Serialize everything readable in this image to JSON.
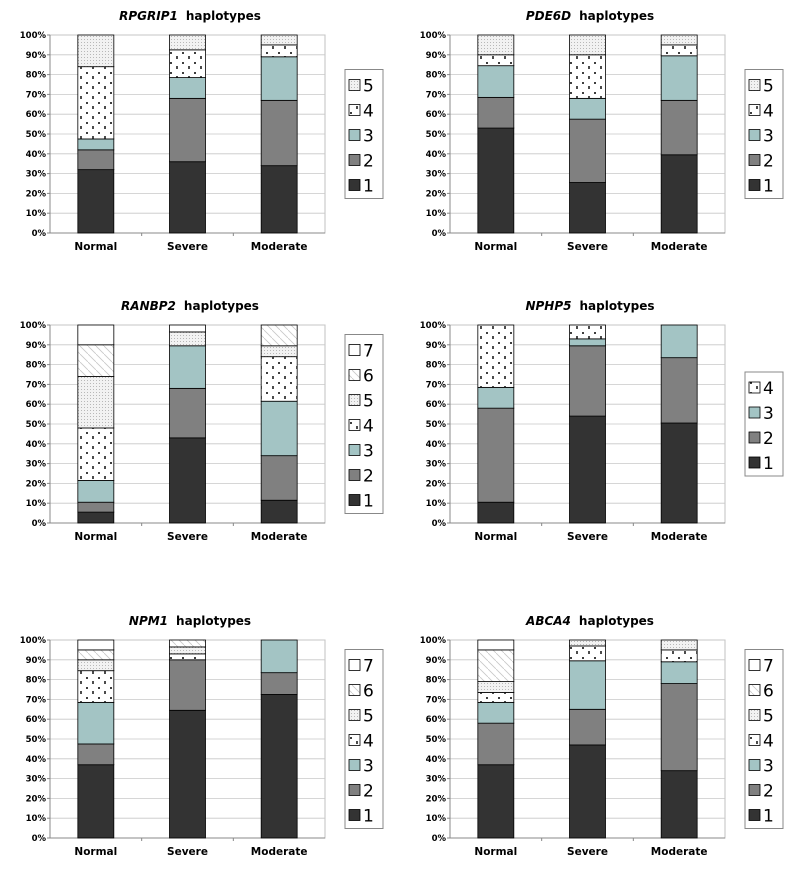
{
  "colors": {
    "h1": "#333333",
    "h2": "#808080",
    "h3": "#a3c4c4",
    "h4": "#ffffff",
    "h5": "#f0f0f0",
    "h6": "#ffffff",
    "h7": "#ffffff"
  },
  "chart_data": [
    {
      "type": "bar",
      "stacked": true,
      "title_gene": "RPGRIP1",
      "title_suffix": "haplotypes",
      "ylim": [
        0,
        100
      ],
      "yticks": [
        "0%",
        "10%",
        "20%",
        "30%",
        "40%",
        "50%",
        "60%",
        "70%",
        "80%",
        "90%",
        "100%"
      ],
      "categories": [
        "Normal",
        "Severe",
        "Moderate"
      ],
      "series": [
        {
          "name": "1",
          "values": [
            32,
            36,
            34
          ]
        },
        {
          "name": "2",
          "values": [
            10,
            32,
            33
          ]
        },
        {
          "name": "3",
          "values": [
            5.5,
            10.5,
            22
          ]
        },
        {
          "name": "4",
          "values": [
            36.5,
            14,
            6
          ]
        },
        {
          "name": "5",
          "values": [
            16,
            7.5,
            5
          ]
        }
      ],
      "legend_order": [
        "5",
        "4",
        "3",
        "2",
        "1"
      ],
      "legend": "right"
    },
    {
      "type": "bar",
      "stacked": true,
      "title_gene": "PDE6D",
      "title_suffix": "haplotypes",
      "ylim": [
        0,
        100
      ],
      "yticks": [
        "0%",
        "10%",
        "20%",
        "30%",
        "40%",
        "50%",
        "60%",
        "70%",
        "80%",
        "90%",
        "100%"
      ],
      "categories": [
        "Normal",
        "Severe",
        "Moderate"
      ],
      "series": [
        {
          "name": "1",
          "values": [
            53,
            25.5,
            39.5
          ]
        },
        {
          "name": "2",
          "values": [
            15.5,
            32,
            27.5
          ]
        },
        {
          "name": "3",
          "values": [
            16,
            10.5,
            22.5
          ]
        },
        {
          "name": "4",
          "values": [
            5.5,
            22,
            5.5
          ]
        },
        {
          "name": "5",
          "values": [
            10,
            10,
            5
          ]
        }
      ],
      "legend_order": [
        "5",
        "4",
        "3",
        "2",
        "1"
      ],
      "legend": "right"
    },
    {
      "type": "bar",
      "stacked": true,
      "title_gene": "RANBP2",
      "title_suffix": "haplotypes",
      "ylim": [
        0,
        100
      ],
      "yticks": [
        "0%",
        "10%",
        "20%",
        "30%",
        "40%",
        "50%",
        "60%",
        "70%",
        "80%",
        "90%",
        "100%"
      ],
      "categories": [
        "Normal",
        "Severe",
        "Moderate"
      ],
      "series": [
        {
          "name": "1",
          "values": [
            5.5,
            43,
            11.5
          ]
        },
        {
          "name": "2",
          "values": [
            5,
            25,
            22.5
          ]
        },
        {
          "name": "3",
          "values": [
            11,
            21.5,
            27.5
          ]
        },
        {
          "name": "4",
          "values": [
            26.5,
            0,
            22.5
          ]
        },
        {
          "name": "5",
          "values": [
            26,
            7,
            5.5
          ]
        },
        {
          "name": "6",
          "values": [
            16,
            0,
            10.5
          ]
        },
        {
          "name": "7",
          "values": [
            10,
            3.5,
            0
          ]
        }
      ],
      "legend_order": [
        "7",
        "6",
        "5",
        "4",
        "3",
        "2",
        "1"
      ],
      "legend": "right"
    },
    {
      "type": "bar",
      "stacked": true,
      "title_gene": "NPHP5",
      "title_suffix": "haplotypes",
      "ylim": [
        0,
        100
      ],
      "yticks": [
        "0%",
        "10%",
        "20%",
        "30%",
        "40%",
        "50%",
        "60%",
        "70%",
        "80%",
        "90%",
        "100%"
      ],
      "categories": [
        "Normal",
        "Severe",
        "Moderate"
      ],
      "series": [
        {
          "name": "1",
          "values": [
            10.5,
            54,
            50.5
          ]
        },
        {
          "name": "2",
          "values": [
            47.5,
            35.5,
            33
          ]
        },
        {
          "name": "3",
          "values": [
            10.5,
            3.5,
            16.5
          ]
        },
        {
          "name": "4",
          "values": [
            31.5,
            7,
            0
          ]
        }
      ],
      "legend_order": [
        "4",
        "3",
        "2",
        "1"
      ],
      "legend": "right"
    },
    {
      "type": "bar",
      "stacked": true,
      "title_gene": "NPM1",
      "title_suffix": "haplotypes",
      "ylim": [
        0,
        100
      ],
      "yticks": [
        "0%",
        "10%",
        "20%",
        "30%",
        "40%",
        "50%",
        "60%",
        "70%",
        "80%",
        "90%",
        "100%"
      ],
      "categories": [
        "Normal",
        "Severe",
        "Moderate"
      ],
      "series": [
        {
          "name": "1",
          "values": [
            37,
            64.5,
            72.5
          ]
        },
        {
          "name": "2",
          "values": [
            10.5,
            25.5,
            11
          ]
        },
        {
          "name": "3",
          "values": [
            21,
            0,
            16.5
          ]
        },
        {
          "name": "4",
          "values": [
            16,
            3,
            0
          ]
        },
        {
          "name": "5",
          "values": [
            5.5,
            3.5,
            0
          ]
        },
        {
          "name": "6",
          "values": [
            5,
            3.5,
            0
          ]
        },
        {
          "name": "7",
          "values": [
            5,
            0,
            0
          ]
        }
      ],
      "legend_order": [
        "7",
        "6",
        "5",
        "4",
        "3",
        "2",
        "1"
      ],
      "legend": "right"
    },
    {
      "type": "bar",
      "stacked": true,
      "title_gene": "ABCA4",
      "title_suffix": "haplotypes",
      "ylim": [
        0,
        100
      ],
      "yticks": [
        "0%",
        "10%",
        "20%",
        "30%",
        "40%",
        "50%",
        "60%",
        "70%",
        "80%",
        "90%",
        "100%"
      ],
      "categories": [
        "Normal",
        "Severe",
        "Moderate"
      ],
      "series": [
        {
          "name": "1",
          "values": [
            37,
            47,
            34
          ]
        },
        {
          "name": "2",
          "values": [
            21,
            18,
            44
          ]
        },
        {
          "name": "3",
          "values": [
            10.5,
            24.5,
            11
          ]
        },
        {
          "name": "4",
          "values": [
            5,
            7.5,
            6
          ]
        },
        {
          "name": "5",
          "values": [
            5.5,
            3,
            5
          ]
        },
        {
          "name": "6",
          "values": [
            16,
            0,
            0
          ]
        },
        {
          "name": "7",
          "values": [
            5,
            0,
            0
          ]
        }
      ],
      "legend_order": [
        "7",
        "6",
        "5",
        "4",
        "3",
        "2",
        "1"
      ],
      "legend": "right"
    }
  ]
}
